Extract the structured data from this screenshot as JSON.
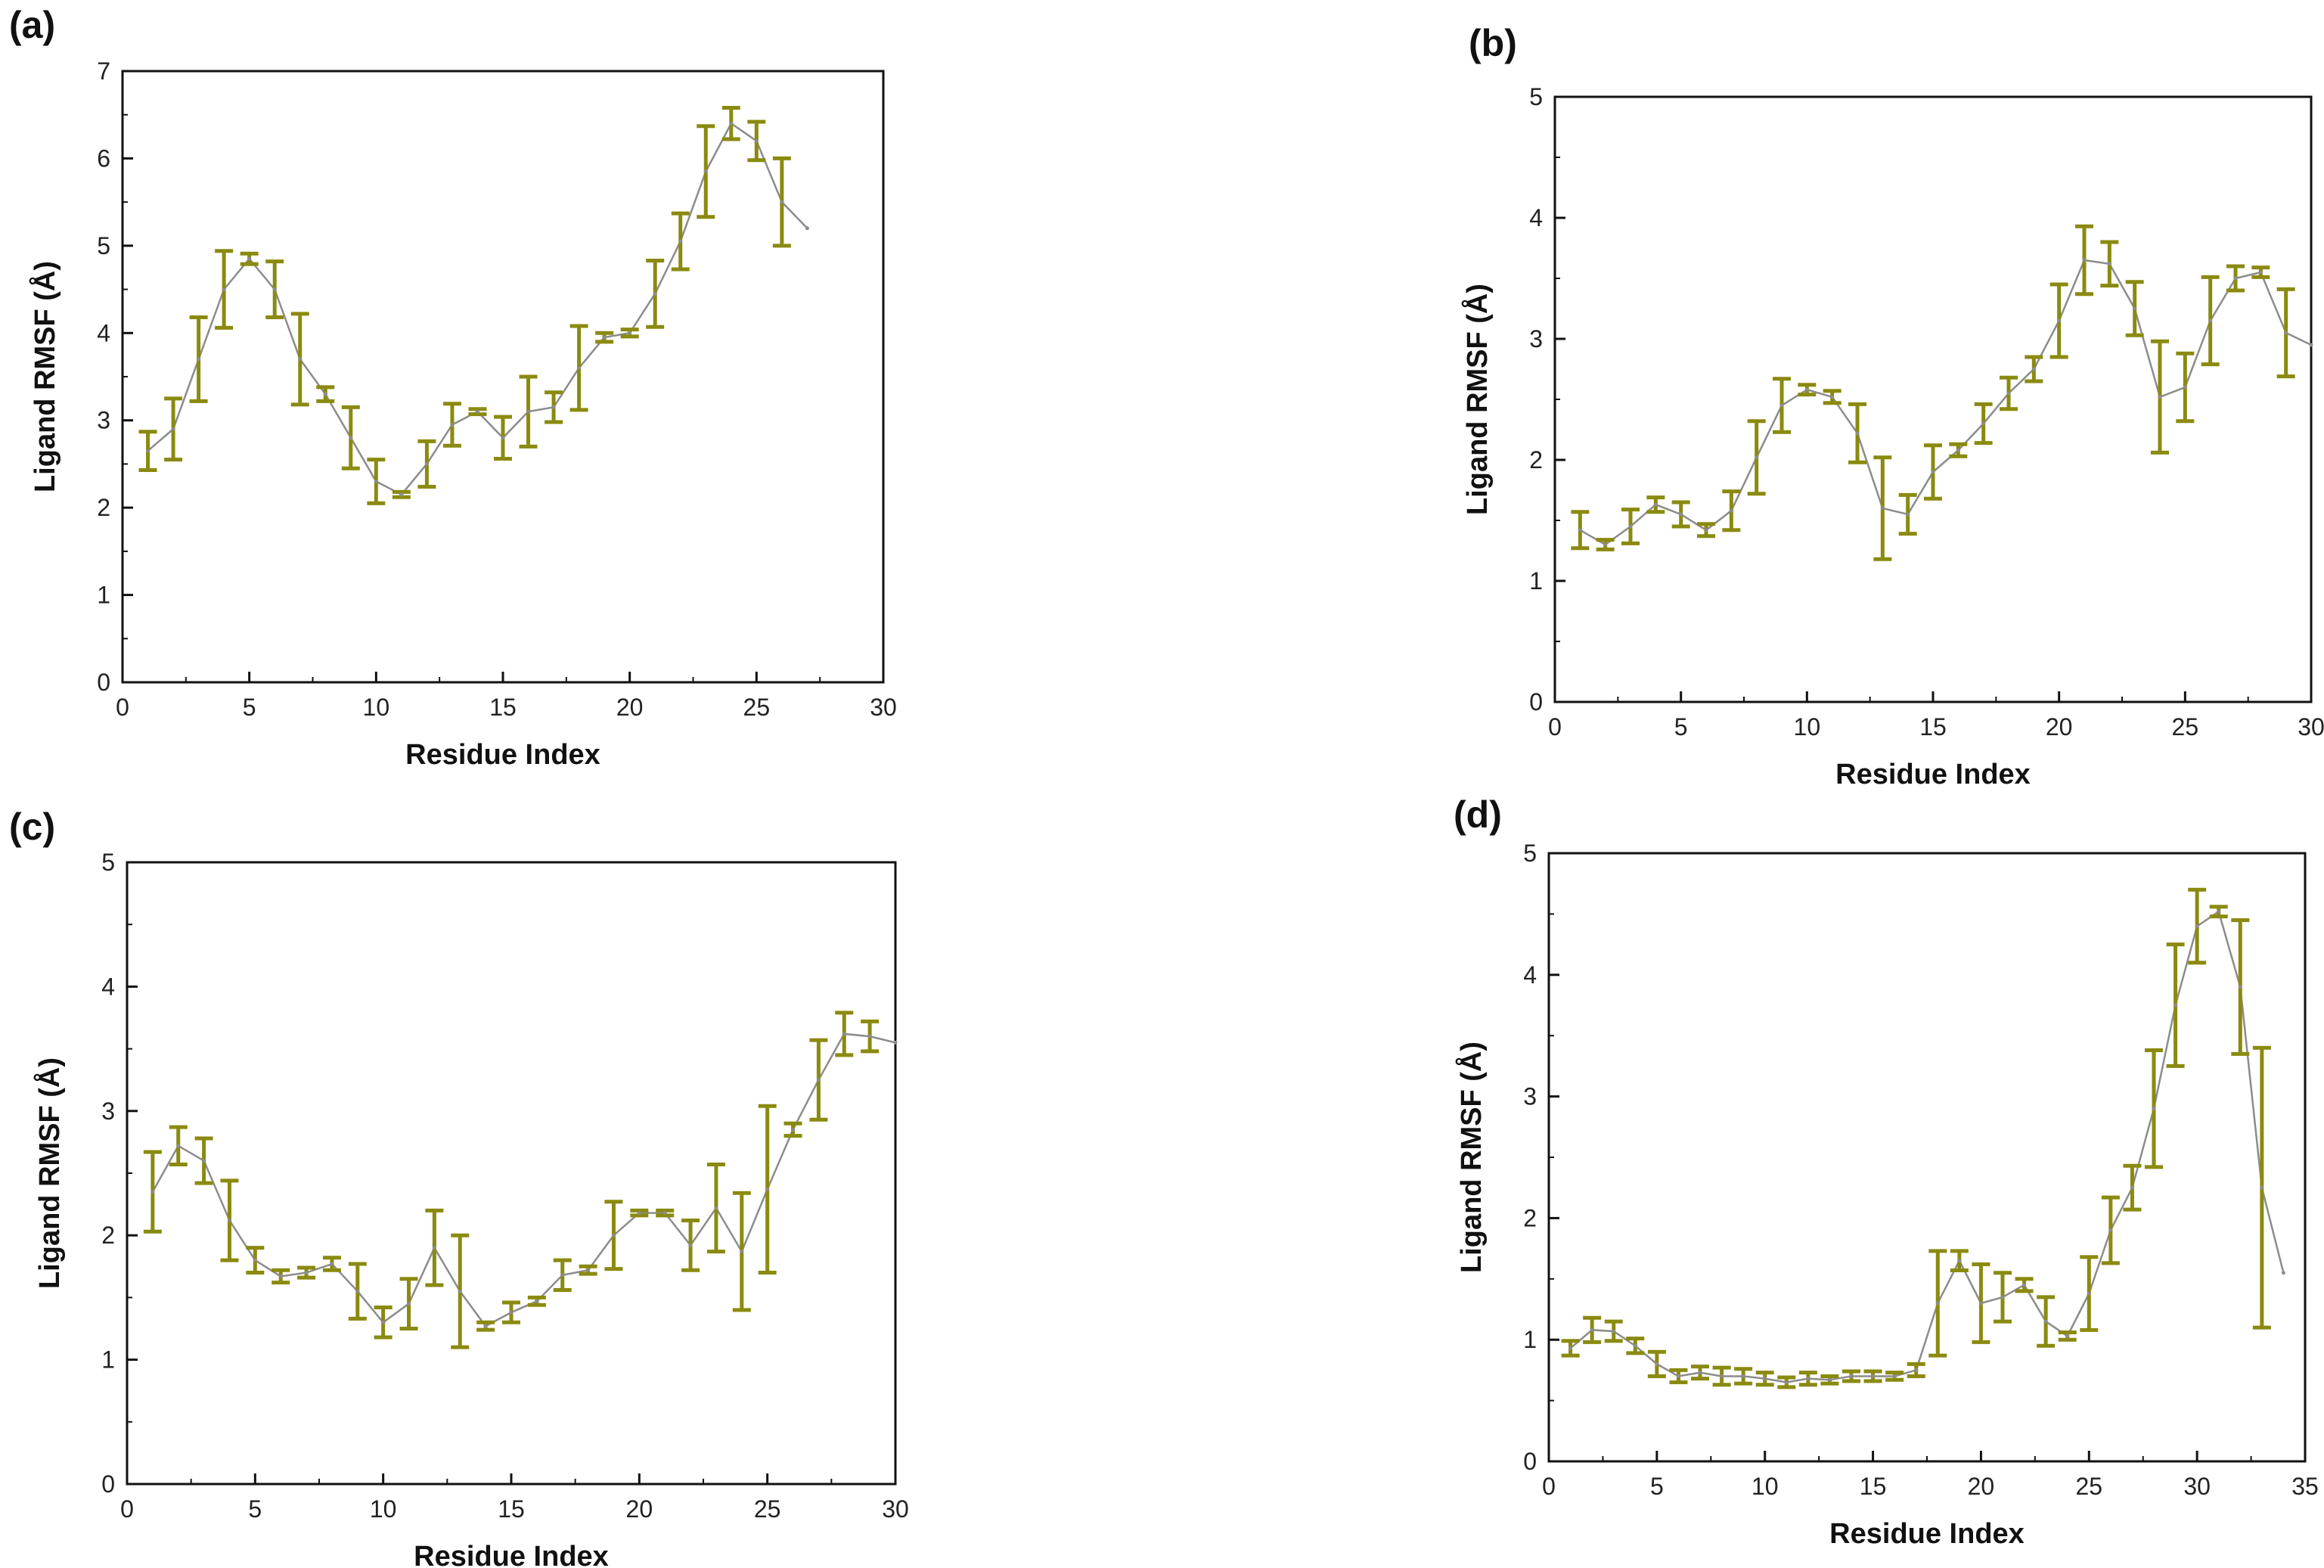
{
  "colors": {
    "errorbar": "#8a8a10",
    "line": "#8c8c8c",
    "axis": "#111111"
  },
  "chart_data": [
    {
      "panel": "(a)",
      "type": "line",
      "xlabel": "Residue Index",
      "ylabel": "Ligand RMSF (Å)",
      "xlim": [
        0,
        30
      ],
      "ylim": [
        0,
        7
      ],
      "xticks": [
        0,
        5,
        10,
        15,
        20,
        25,
        30
      ],
      "yticks": [
        0,
        1,
        2,
        3,
        4,
        5,
        6,
        7
      ],
      "error_bars": true,
      "x": [
        1,
        2,
        3,
        4,
        5,
        6,
        7,
        8,
        9,
        10,
        11,
        12,
        13,
        14,
        15,
        16,
        17,
        18,
        19,
        20,
        21,
        22,
        23,
        24,
        25,
        26,
        27
      ],
      "y": [
        2.65,
        2.9,
        3.7,
        4.5,
        4.85,
        4.5,
        3.7,
        3.3,
        2.8,
        2.3,
        2.15,
        2.5,
        2.95,
        3.1,
        2.8,
        3.1,
        3.15,
        3.6,
        3.95,
        4.0,
        4.45,
        5.05,
        5.85,
        6.4,
        6.2,
        5.5,
        5.2
      ],
      "err": [
        0.22,
        0.35,
        0.48,
        0.44,
        0.06,
        0.32,
        0.52,
        0.08,
        0.35,
        0.25,
        0.03,
        0.26,
        0.24,
        0.03,
        0.24,
        0.4,
        0.17,
        0.48,
        0.05,
        0.04,
        0.38,
        0.32,
        0.52,
        0.18,
        0.22,
        0.5,
        0.0
      ]
    },
    {
      "panel": "(b)",
      "type": "line",
      "xlabel": "Residue Index",
      "ylabel": "Ligand RMSF (Å)",
      "xlim": [
        0,
        30
      ],
      "ylim": [
        0,
        5
      ],
      "xticks": [
        0,
        5,
        10,
        15,
        20,
        25,
        30
      ],
      "yticks": [
        0,
        1,
        2,
        3,
        4,
        5
      ],
      "error_bars": true,
      "x": [
        1,
        2,
        3,
        4,
        5,
        6,
        7,
        8,
        9,
        10,
        11,
        12,
        13,
        14,
        15,
        16,
        17,
        18,
        19,
        20,
        21,
        22,
        23,
        24,
        25,
        26,
        27,
        28,
        29,
        30
      ],
      "y": [
        1.42,
        1.3,
        1.45,
        1.63,
        1.55,
        1.42,
        1.58,
        2.02,
        2.45,
        2.58,
        2.52,
        2.22,
        1.6,
        1.55,
        1.9,
        2.08,
        2.3,
        2.55,
        2.75,
        3.15,
        3.65,
        3.62,
        3.25,
        2.52,
        2.6,
        3.15,
        3.5,
        3.55,
        3.05,
        2.95
      ],
      "err": [
        0.15,
        0.04,
        0.14,
        0.06,
        0.1,
        0.05,
        0.16,
        0.3,
        0.22,
        0.04,
        0.05,
        0.24,
        0.42,
        0.16,
        0.22,
        0.05,
        0.16,
        0.13,
        0.1,
        0.3,
        0.28,
        0.18,
        0.22,
        0.46,
        0.28,
        0.36,
        0.1,
        0.04,
        0.36,
        0.0
      ]
    },
    {
      "panel": "(c)",
      "type": "line",
      "xlabel": "Residue Index",
      "ylabel": "Ligand RMSF (Å)",
      "xlim": [
        0,
        30
      ],
      "ylim": [
        0,
        5
      ],
      "xticks": [
        0,
        5,
        10,
        15,
        20,
        25,
        30
      ],
      "yticks": [
        0,
        1,
        2,
        3,
        4,
        5
      ],
      "error_bars": true,
      "x": [
        1,
        2,
        3,
        4,
        5,
        6,
        7,
        8,
        9,
        10,
        11,
        12,
        13,
        14,
        15,
        16,
        17,
        18,
        19,
        20,
        21,
        22,
        23,
        24,
        25,
        26,
        27,
        28,
        29,
        30
      ],
      "y": [
        2.35,
        2.72,
        2.6,
        2.12,
        1.8,
        1.67,
        1.7,
        1.77,
        1.55,
        1.3,
        1.45,
        1.9,
        1.55,
        1.27,
        1.38,
        1.47,
        1.68,
        1.72,
        2.0,
        2.18,
        2.18,
        1.92,
        2.22,
        1.87,
        2.37,
        2.85,
        3.25,
        3.62,
        3.6,
        3.55
      ],
      "err": [
        0.32,
        0.15,
        0.18,
        0.32,
        0.1,
        0.05,
        0.04,
        0.05,
        0.22,
        0.12,
        0.2,
        0.3,
        0.45,
        0.03,
        0.08,
        0.03,
        0.12,
        0.03,
        0.27,
        0.02,
        0.02,
        0.2,
        0.35,
        0.47,
        0.67,
        0.05,
        0.32,
        0.17,
        0.12,
        0.0
      ]
    },
    {
      "panel": "(d)",
      "type": "line",
      "xlabel": "Residue Index",
      "ylabel": "Ligand RMSF (Å)",
      "xlim": [
        0,
        35
      ],
      "ylim": [
        0,
        5
      ],
      "xticks": [
        0,
        5,
        10,
        15,
        20,
        25,
        30,
        35
      ],
      "yticks": [
        0,
        1,
        2,
        3,
        4,
        5
      ],
      "error_bars": true,
      "x": [
        1,
        2,
        3,
        4,
        5,
        6,
        7,
        8,
        9,
        10,
        11,
        12,
        13,
        14,
        15,
        16,
        17,
        18,
        19,
        20,
        21,
        22,
        23,
        24,
        25,
        26,
        27,
        28,
        29,
        30,
        31,
        32,
        33,
        34
      ],
      "y": [
        0.93,
        1.08,
        1.07,
        0.95,
        0.8,
        0.7,
        0.73,
        0.7,
        0.7,
        0.68,
        0.65,
        0.68,
        0.67,
        0.7,
        0.7,
        0.7,
        0.75,
        1.3,
        1.65,
        1.3,
        1.35,
        1.45,
        1.15,
        1.03,
        1.38,
        1.9,
        2.25,
        2.9,
        3.75,
        4.4,
        4.52,
        3.9,
        2.25,
        1.55
      ],
      "err": [
        0.06,
        0.1,
        0.08,
        0.06,
        0.1,
        0.05,
        0.05,
        0.07,
        0.06,
        0.05,
        0.04,
        0.05,
        0.03,
        0.04,
        0.04,
        0.03,
        0.05,
        0.43,
        0.08,
        0.32,
        0.2,
        0.05,
        0.2,
        0.03,
        0.3,
        0.27,
        0.18,
        0.48,
        0.5,
        0.3,
        0.04,
        0.55,
        1.15,
        0.0
      ]
    }
  ]
}
